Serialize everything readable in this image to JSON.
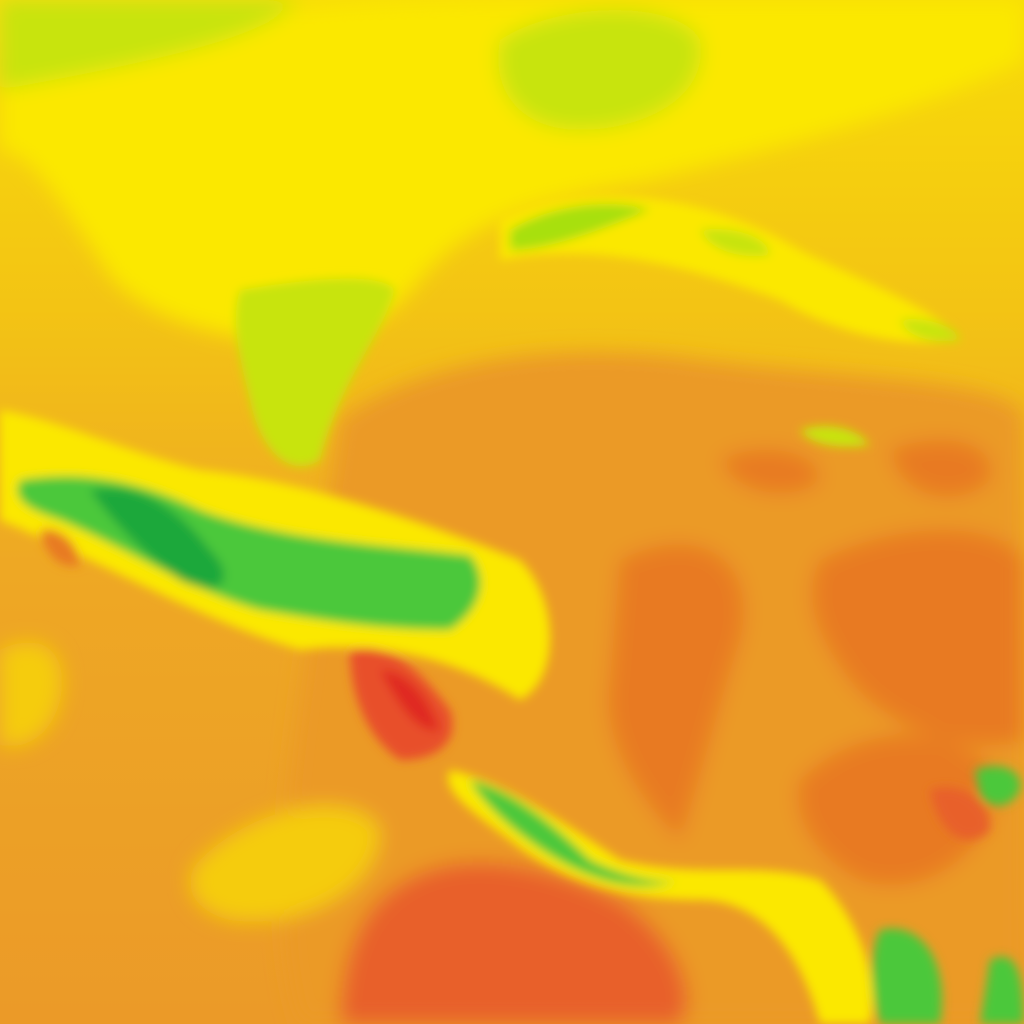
{
  "map": {
    "type": "weather-heatmap-tile",
    "colors": {
      "green_dark": "#1fa83a",
      "green": "#4cc83a",
      "yellow_green": "#c8e40a",
      "yellow": "#fbe800",
      "yellow_orange": "#f5cc10",
      "orange_light": "#f0b020",
      "orange": "#eb9a28",
      "orange_dark": "#e87a24",
      "red_orange": "#e8602a",
      "red": "#e02a20"
    }
  }
}
